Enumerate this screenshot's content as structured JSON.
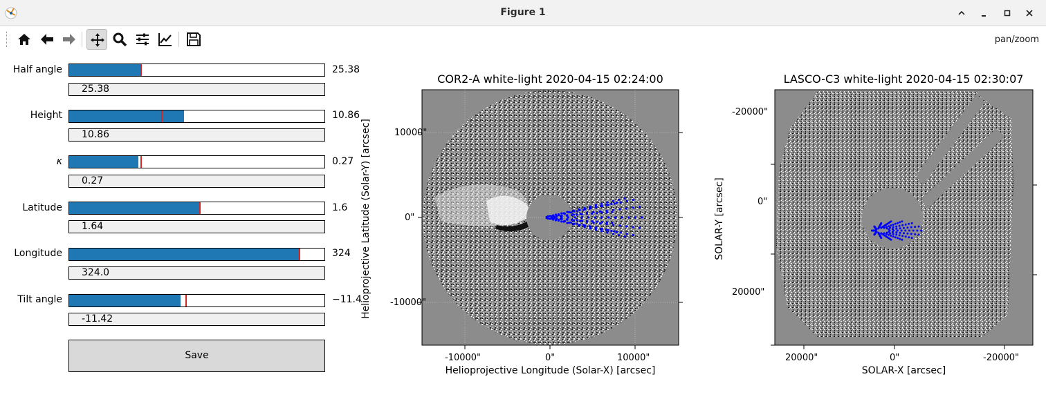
{
  "window": {
    "title": "Figure 1"
  },
  "toolbar": {
    "buttons": [
      "home-icon",
      "back-arrow-icon",
      "forward-arrow-icon",
      "pan-icon",
      "zoom-icon",
      "configure-subplots-icon",
      "edit-axes-icon",
      "save-icon"
    ],
    "mode": "pan/zoom"
  },
  "sliders": [
    {
      "label": "Half angle",
      "value_text": "25.38",
      "box_text": "25.38",
      "fill_frac": 0.28,
      "marker_frac": 0.28
    },
    {
      "label": "Height",
      "value_text": "10.86",
      "box_text": "10.86",
      "fill_frac": 0.45,
      "marker_frac": 0.36
    },
    {
      "label": "κ",
      "value_text": "0.27",
      "box_text": "0.27",
      "fill_frac": 0.27,
      "marker_frac": 0.28
    },
    {
      "label": "Latitude",
      "value_text": "1.6",
      "box_text": "1.64",
      "fill_frac": 0.51,
      "marker_frac": 0.51
    },
    {
      "label": "Longitude",
      "value_text": "324",
      "box_text": "324.0",
      "fill_frac": 0.9,
      "marker_frac": 0.9
    },
    {
      "label": "Tilt angle",
      "value_text": "−11.4",
      "box_text": "-11.42",
      "fill_frac": 0.437,
      "marker_frac": 0.455
    }
  ],
  "save_button": {
    "label": "Save"
  },
  "plots": {
    "cor2": {
      "title": "COR2-A white-light 2020-04-15 02:24:00",
      "xlabel": "Helioprojective Longitude (Solar-X) [arcsec]",
      "ylabel": "Helioprojective Latitude (Solar-Y) [arcsec]",
      "xticks": [
        "-10000\"",
        "0\"",
        "10000\""
      ],
      "yticks": [
        "10000\"",
        "0\"",
        "-10000\""
      ]
    },
    "lasco": {
      "title": "LASCO-C3 white-light 2020-04-15 02:30:07",
      "xlabel": "SOLAR-X [arcsec]",
      "ylabel": "SOLAR-Y [arcsec]",
      "xticks": [
        "20000\"",
        "0\"",
        "-20000\""
      ],
      "yticks": [
        "-20000\"",
        "0\"",
        "20000\""
      ]
    }
  },
  "colors": {
    "slider_fill": "#1f77b4",
    "slider_marker": "#d62728",
    "points": "#0000ff",
    "background_gray": "#8c8c8c"
  }
}
